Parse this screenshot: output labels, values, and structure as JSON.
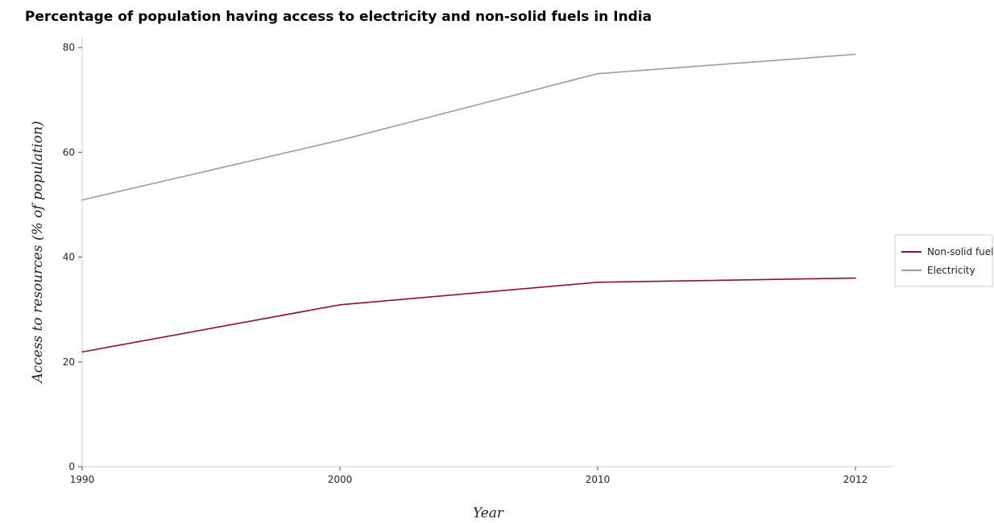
{
  "chart_data": {
    "type": "line",
    "title": "Percentage of population having access to electricity and non-solid fuels in India",
    "xlabel": "Year",
    "ylabel": "Access to resources (% of population)",
    "categories": [
      "1990",
      "2000",
      "2010",
      "2012"
    ],
    "y_ticks": [
      "0",
      "20",
      "40",
      "60",
      "80"
    ],
    "ylim": [
      0,
      82
    ],
    "grid": false,
    "legend_position": "right",
    "series": [
      {
        "name": "Non-solid fuel",
        "color": "#990e2b",
        "values": [
          21.9,
          30.9,
          35.2,
          36.0
        ]
      },
      {
        "name": "Electricity",
        "color": "#a89a92",
        "values": [
          50.9,
          62.3,
          75.0,
          78.7
        ]
      }
    ]
  }
}
